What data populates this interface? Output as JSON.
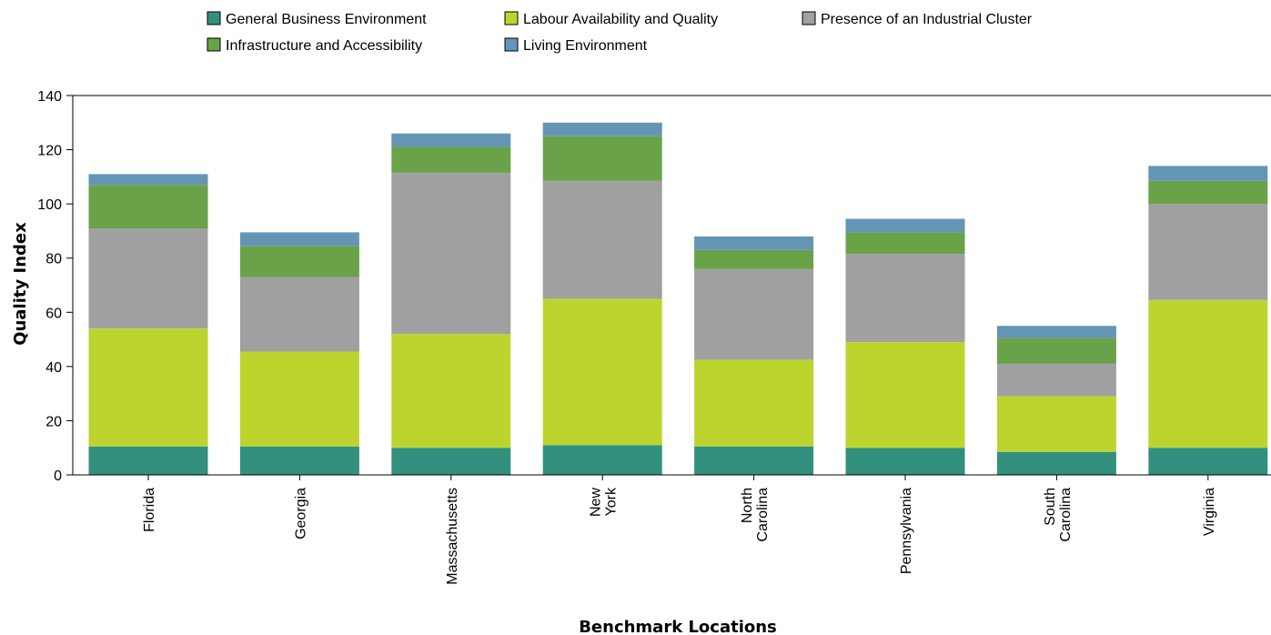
{
  "chart_data": {
    "type": "bar",
    "stacked": true,
    "categories": [
      [
        "Florida"
      ],
      [
        "Georgia"
      ],
      [
        "Massachusetts"
      ],
      [
        "New",
        "York"
      ],
      [
        "North",
        "Carolina"
      ],
      [
        "Pennsylvania"
      ],
      [
        "South",
        "Carolina"
      ],
      [
        "Virginia"
      ]
    ],
    "series": [
      {
        "name": "General Business Environment",
        "color": "#33907f",
        "values": [
          10.5,
          10.5,
          10,
          11,
          10.5,
          10,
          8.5,
          10
        ]
      },
      {
        "name": "Labour Availability and Quality",
        "color": "#bdd42f",
        "values": [
          43.5,
          35,
          42,
          54,
          32,
          39,
          20.5,
          54.5
        ]
      },
      {
        "name": "Presence of an Industrial Cluster",
        "color": "#a0a0a0",
        "values": [
          37,
          27.5,
          59.5,
          43.5,
          33.5,
          32.5,
          12,
          35.5
        ]
      },
      {
        "name": "Infrastructure and Accessibility",
        "color": "#6aa24a",
        "values": [
          16,
          11.5,
          9.5,
          16.5,
          7,
          8,
          9.5,
          8.5
        ]
      },
      {
        "name": "Living Environment",
        "color": "#6495b5",
        "values": [
          4,
          5,
          5,
          5,
          5,
          5,
          4.5,
          5.5
        ]
      }
    ],
    "legend_order": [
      "General Business Environment",
      "Labour Availability and Quality",
      "Presence of an Industrial Cluster",
      "Infrastructure and Accessibility",
      "Living Environment"
    ],
    "legend_position": "top",
    "xlabel": "Benchmark Locations",
    "ylabel": "Quality Index",
    "ylim": [
      0,
      140
    ],
    "yticks": [
      0,
      20,
      40,
      60,
      80,
      100,
      120,
      140
    ],
    "grid": false
  }
}
